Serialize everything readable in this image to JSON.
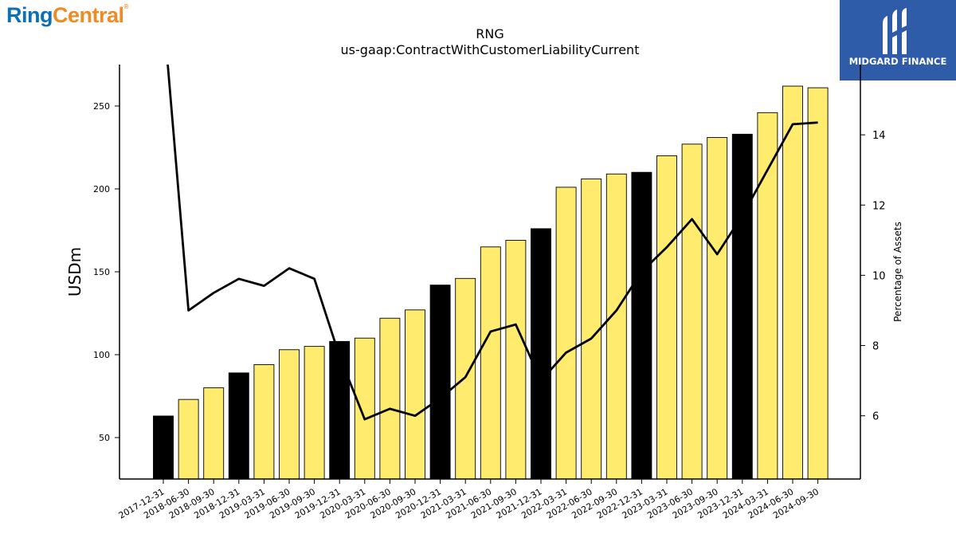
{
  "logos": {
    "left_ring": "Ring",
    "left_central": "Central",
    "left_reg": "®",
    "right_text": "MIDGARD FINANCE"
  },
  "colors": {
    "bar_default": "#ffec6e",
    "bar_year_end": "#000000",
    "line": "#000000",
    "brand_blue": "#2f5ca8"
  },
  "chart_data": {
    "type": "bar",
    "title": "RNG",
    "subtitle": "us-gaap:ContractWithCustomerLiabilityCurrent",
    "ylabel": "USDm",
    "y2label": "Percentage of Assets",
    "ylim": [
      25,
      275
    ],
    "y2lim": [
      4.2,
      16.0
    ],
    "yticks": [
      50,
      100,
      150,
      200,
      250
    ],
    "y2ticks": [
      6,
      8,
      10,
      12,
      14
    ],
    "categories": [
      "2017-12-31",
      "2018-06-30",
      "2018-09-30",
      "2018-12-31",
      "2019-03-31",
      "2019-06-30",
      "2019-09-30",
      "2019-12-31",
      "2020-03-31",
      "2020-06-30",
      "2020-09-30",
      "2020-12-31",
      "2021-03-31",
      "2021-06-30",
      "2021-09-30",
      "2021-12-31",
      "2022-03-31",
      "2022-06-30",
      "2022-09-30",
      "2022-12-31",
      "2023-03-31",
      "2023-06-30",
      "2023-09-30",
      "2023-12-31",
      "2024-03-31",
      "2024-06-30",
      "2024-09-30"
    ],
    "series": [
      {
        "type": "bar",
        "values": [
          63,
          73,
          80,
          89,
          94,
          103,
          105,
          108,
          110,
          122,
          127,
          142,
          146,
          165,
          169,
          176,
          201,
          206,
          209,
          210,
          220,
          227,
          231,
          233,
          246,
          262,
          261
        ]
      },
      {
        "type": "line",
        "axis": "right",
        "values": [
          17.5,
          9.0,
          9.5,
          9.9,
          9.7,
          10.2,
          9.9,
          7.7,
          5.9,
          6.2,
          6.0,
          6.5,
          7.1,
          8.4,
          8.6,
          7.0,
          7.8,
          8.2,
          9.0,
          10.1,
          10.8,
          11.6,
          10.6,
          11.7,
          13.0,
          14.3,
          14.35
        ]
      }
    ],
    "highlight_categories": [
      "2017-12-31",
      "2018-12-31",
      "2019-12-31",
      "2020-12-31",
      "2021-12-31",
      "2022-12-31",
      "2023-12-31"
    ],
    "grid": false,
    "legend": "none"
  }
}
